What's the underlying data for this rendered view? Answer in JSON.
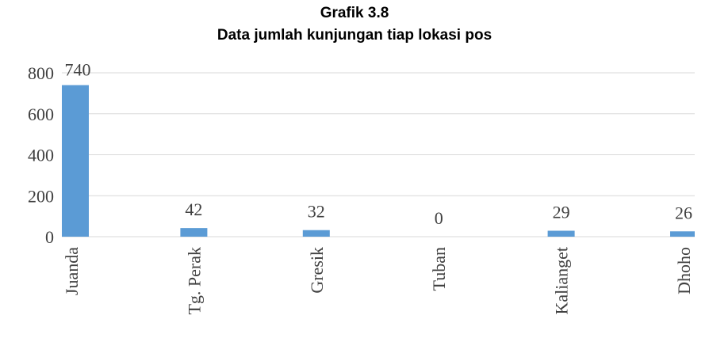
{
  "chart_data": {
    "type": "bar",
    "title": "Grafik 3.8",
    "subtitle": "Data jumlah kunjungan tiap lokasi pos",
    "categories": [
      "Juanda",
      "Tg. Perak",
      "Gresik",
      "Tuban",
      "Kalianget",
      "Dhoho"
    ],
    "values": [
      740,
      42,
      32,
      0,
      29,
      26
    ],
    "color": "#5b9bd5",
    "ylim": [
      0,
      800
    ],
    "yticks": [
      0,
      200,
      400,
      600,
      800
    ],
    "grid": true
  }
}
